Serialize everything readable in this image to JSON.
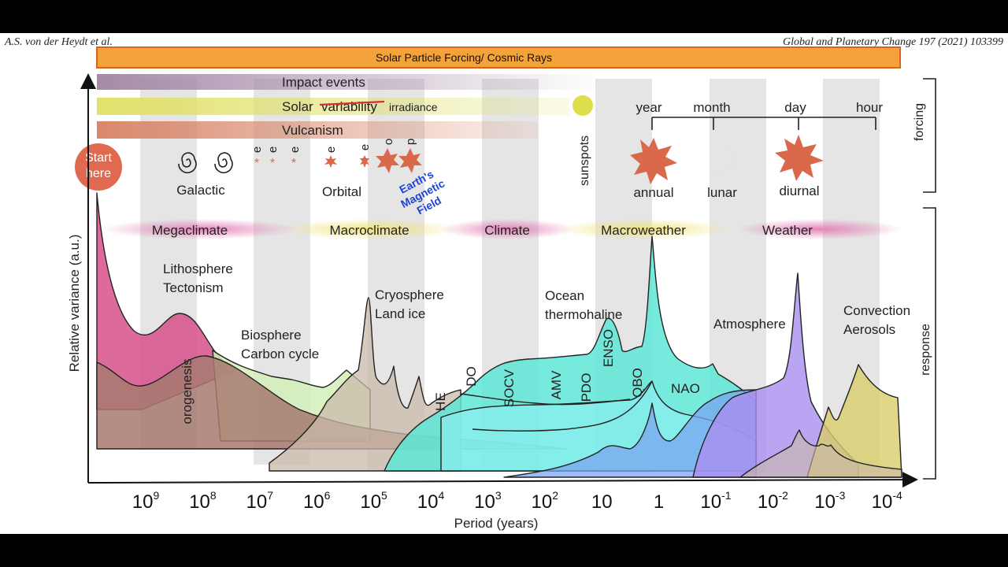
{
  "header": {
    "left": "A.S. von der Heydt et al.",
    "right": "Global and Planetary Change 197 (2021) 103399"
  },
  "axes": {
    "xlabel": "Period (years)",
    "ylabel": "Relative variance (a.u.)",
    "ticks": [
      {
        "base": "10",
        "exp": "9"
      },
      {
        "base": "10",
        "exp": "8"
      },
      {
        "base": "10",
        "exp": "7"
      },
      {
        "base": "10",
        "exp": "6"
      },
      {
        "base": "10",
        "exp": "5"
      },
      {
        "base": "10",
        "exp": "4"
      },
      {
        "base": "10",
        "exp": "3"
      },
      {
        "base": "10",
        "exp": "2"
      },
      {
        "base": "10",
        "exp": ""
      },
      {
        "base": "1",
        "exp": ""
      },
      {
        "base": "10",
        "exp": "-1"
      },
      {
        "base": "10",
        "exp": "-2"
      },
      {
        "base": "10",
        "exp": "-3"
      },
      {
        "base": "10",
        "exp": "-4"
      }
    ]
  },
  "forcing_bars": {
    "solar_particle": "Solar Particle Forcing/ Cosmic Rays",
    "impact": "Impact events",
    "solar_struck": "variability",
    "solar_prefix": "Solar",
    "solar_suffix": "irradiance",
    "vulcanism": "Vulcanism"
  },
  "forcing_labels": {
    "start_line1": "Start",
    "start_line2": "here",
    "galactic": "Galactic",
    "orbital": "Orbital",
    "orbital_letters": [
      "e",
      "e",
      "e",
      "e",
      "e",
      "o",
      "p"
    ],
    "magnetic_line1": "Earth's",
    "magnetic_line2": "Magnetic",
    "magnetic_line3": "Field",
    "sunspots": "sunspots",
    "year": "year",
    "month": "month",
    "day": "day",
    "hour": "hour",
    "annual": "annual",
    "lunar": "lunar",
    "diurnal": "diurnal",
    "forcing_side": "forcing",
    "response_side": "response"
  },
  "regimes": [
    "Megaclimate",
    "Macroclimate",
    "Climate",
    "Macroweather",
    "Weather"
  ],
  "response_labels": {
    "litho1": "Lithosphere",
    "litho2": "Tectonism",
    "orogenesis": "orogenesis",
    "bio1": "Biosphere",
    "bio2": "Carbon cycle",
    "cryo1": "Cryosphere",
    "cryo2": "Land ice",
    "ocean1": "Ocean",
    "ocean2": "thermohaline",
    "he": "HE",
    "do": "DO",
    "socv": "SOCV",
    "amv": "AMV",
    "pdo": "PDO",
    "enso": "ENSO",
    "qbo": "QBO",
    "nao": "NAO",
    "atmosphere": "Atmosphere",
    "conv1": "Convection",
    "conv2": "Aerosols"
  },
  "colors": {
    "solar_particle": "#f4a23a",
    "impact": "#a58aa8",
    "solar": "#e1e16a",
    "vulcanism": "#d9876a",
    "star": "#d9694a",
    "litho": "#d6508a",
    "orogeny": "#a77a70",
    "bio": "#d4f0b8",
    "cryo": "#c9b9a9",
    "ocean": "#5ee6d6",
    "macroweather": "#8ceef0",
    "atmos": "#a98ff0",
    "convection": "#d8cd6a",
    "blue_mode": "#7aa6f0",
    "magnetic_text": "#1f45d8"
  }
}
